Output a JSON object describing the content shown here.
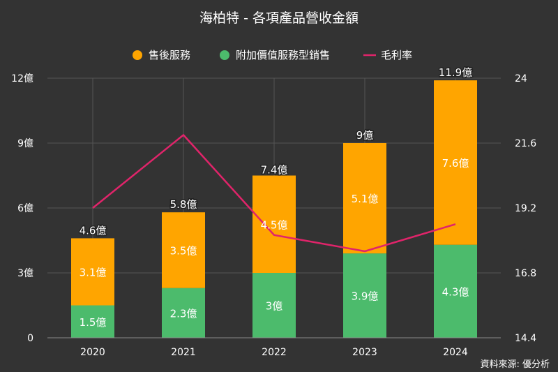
{
  "chart_data": {
    "type": "bar",
    "title": "海柏特 - 各項產品營收金額",
    "categories": [
      "2020",
      "2021",
      "2022",
      "2023",
      "2024"
    ],
    "series": [
      {
        "name": "附加價值服務型銷售",
        "stack": "revenue",
        "color": "#4CBB6C",
        "values": [
          1.5,
          2.3,
          3,
          3.9,
          4.3
        ],
        "labels": [
          "1.5億",
          "2.3億",
          "3億",
          "3.9億",
          "4.3億"
        ]
      },
      {
        "name": "售後服務",
        "stack": "revenue",
        "color": "#FFA500",
        "values": [
          3.1,
          3.5,
          4.5,
          5.1,
          7.6
        ],
        "labels": [
          "3.1億",
          "3.5億",
          "4.5億",
          "5.1億",
          "7.6億"
        ]
      },
      {
        "name": "毛利率",
        "type": "line",
        "axis": "right",
        "color": "#E0246A",
        "values": [
          19.2,
          21.9,
          18.2,
          17.6,
          18.6
        ]
      }
    ],
    "totals": {
      "values": [
        4.6,
        5.8,
        7.4,
        9,
        11.9
      ],
      "labels": [
        "4.6億",
        "5.8億",
        "7.4億",
        "9億",
        "11.9億"
      ]
    },
    "legend": {
      "position": "top-center",
      "items": [
        "售後服務",
        "附加價值服務型銷售",
        "毛利率"
      ]
    },
    "y_left": {
      "ylim": [
        0,
        12
      ],
      "ticks": [
        "0",
        "3億",
        "6億",
        "9億",
        "12億"
      ],
      "tick_values": [
        0,
        3,
        6,
        9,
        12
      ]
    },
    "y_right": {
      "ylim": [
        14.4,
        24
      ],
      "ticks": [
        "14.4",
        "16.8",
        "19.2",
        "21.6",
        "24"
      ],
      "tick_values": [
        14.4,
        16.8,
        19.2,
        21.6,
        24
      ]
    },
    "grid": true
  },
  "source": "資料來源: 優分析"
}
